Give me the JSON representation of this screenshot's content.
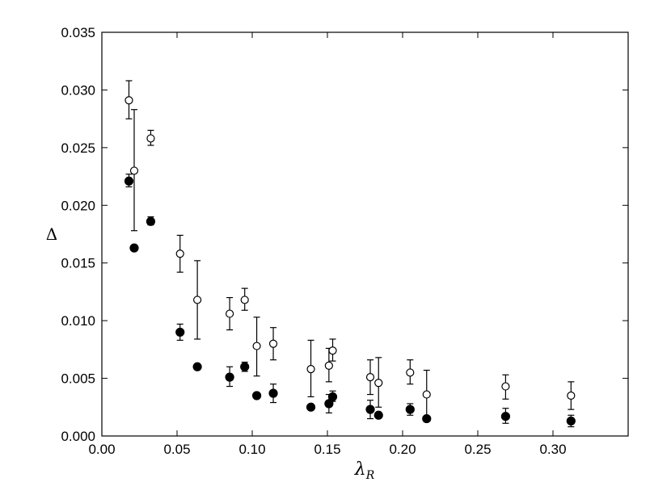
{
  "chart_data": {
    "type": "scatter",
    "xlabel": "λ",
    "xlabel_sub": "R",
    "ylabel": "Δ",
    "xlim": [
      0.0,
      0.35
    ],
    "ylim": [
      0.0,
      0.035
    ],
    "xticks": [
      0.0,
      0.05,
      0.1,
      0.15,
      0.2,
      0.25,
      0.3
    ],
    "xtick_labels": [
      "0.00",
      "0.05",
      "0.10",
      "0.15",
      "0.20",
      "0.25",
      "0.30"
    ],
    "yticks": [
      0.0,
      0.005,
      0.01,
      0.015,
      0.02,
      0.025,
      0.03,
      0.035
    ],
    "ytick_labels": [
      "0.000",
      "0.005",
      "0.010",
      "0.015",
      "0.020",
      "0.025",
      "0.030",
      "0.035"
    ],
    "grid": false,
    "series": [
      {
        "marker": "open-circle",
        "points": [
          {
            "x": 0.018,
            "y": 0.0291,
            "lo": 0.0275,
            "hi": 0.0308
          },
          {
            "x": 0.0215,
            "y": 0.023,
            "lo": 0.0178,
            "hi": 0.0283
          },
          {
            "x": 0.0325,
            "y": 0.0258,
            "lo": 0.0252,
            "hi": 0.0265
          },
          {
            "x": 0.052,
            "y": 0.0158,
            "lo": 0.0142,
            "hi": 0.0174
          },
          {
            "x": 0.0635,
            "y": 0.0118,
            "lo": 0.0084,
            "hi": 0.0152
          },
          {
            "x": 0.085,
            "y": 0.0106,
            "lo": 0.0092,
            "hi": 0.012
          },
          {
            "x": 0.095,
            "y": 0.0118,
            "lo": 0.0109,
            "hi": 0.0128
          },
          {
            "x": 0.103,
            "y": 0.0078,
            "lo": 0.0052,
            "hi": 0.0103
          },
          {
            "x": 0.114,
            "y": 0.008,
            "lo": 0.0066,
            "hi": 0.0094
          },
          {
            "x": 0.139,
            "y": 0.0058,
            "lo": 0.0034,
            "hi": 0.0083
          },
          {
            "x": 0.151,
            "y": 0.0061,
            "lo": 0.0047,
            "hi": 0.0076
          },
          {
            "x": 0.1535,
            "y": 0.0074,
            "lo": 0.0065,
            "hi": 0.0084
          },
          {
            "x": 0.1785,
            "y": 0.0051,
            "lo": 0.0036,
            "hi": 0.0066
          },
          {
            "x": 0.184,
            "y": 0.0046,
            "lo": 0.0025,
            "hi": 0.0068
          },
          {
            "x": 0.205,
            "y": 0.0055,
            "lo": 0.0045,
            "hi": 0.0066
          },
          {
            "x": 0.216,
            "y": 0.0036,
            "lo": 0.0016,
            "hi": 0.0057
          },
          {
            "x": 0.2685,
            "y": 0.0043,
            "lo": 0.0032,
            "hi": 0.0053
          },
          {
            "x": 0.312,
            "y": 0.0035,
            "lo": 0.0023,
            "hi": 0.0047
          }
        ]
      },
      {
        "marker": "filled-circle",
        "points": [
          {
            "x": 0.018,
            "y": 0.0221,
            "lo": 0.0216,
            "hi": 0.0227
          },
          {
            "x": 0.0215,
            "y": 0.0163,
            "lo": 0.0163,
            "hi": 0.0163
          },
          {
            "x": 0.0325,
            "y": 0.0186,
            "lo": 0.0183,
            "hi": 0.019
          },
          {
            "x": 0.052,
            "y": 0.009,
            "lo": 0.0083,
            "hi": 0.0097
          },
          {
            "x": 0.0635,
            "y": 0.006,
            "lo": 0.006,
            "hi": 0.006
          },
          {
            "x": 0.085,
            "y": 0.0051,
            "lo": 0.0043,
            "hi": 0.006
          },
          {
            "x": 0.095,
            "y": 0.006,
            "lo": 0.0056,
            "hi": 0.0064
          },
          {
            "x": 0.103,
            "y": 0.0035,
            "lo": 0.0035,
            "hi": 0.0035
          },
          {
            "x": 0.114,
            "y": 0.0037,
            "lo": 0.0029,
            "hi": 0.0045
          },
          {
            "x": 0.139,
            "y": 0.0025,
            "lo": 0.0025,
            "hi": 0.0025
          },
          {
            "x": 0.151,
            "y": 0.0028,
            "lo": 0.002,
            "hi": 0.0036
          },
          {
            "x": 0.1535,
            "y": 0.0034,
            "lo": 0.003,
            "hi": 0.0039
          },
          {
            "x": 0.1785,
            "y": 0.0023,
            "lo": 0.0015,
            "hi": 0.0031
          },
          {
            "x": 0.184,
            "y": 0.0018,
            "lo": 0.0018,
            "hi": 0.0018
          },
          {
            "x": 0.205,
            "y": 0.0023,
            "lo": 0.0018,
            "hi": 0.0028
          },
          {
            "x": 0.216,
            "y": 0.0015,
            "lo": 0.0015,
            "hi": 0.0015
          },
          {
            "x": 0.2685,
            "y": 0.0017,
            "lo": 0.0011,
            "hi": 0.0024
          },
          {
            "x": 0.312,
            "y": 0.0013,
            "lo": 0.0008,
            "hi": 0.0018
          }
        ]
      }
    ]
  }
}
